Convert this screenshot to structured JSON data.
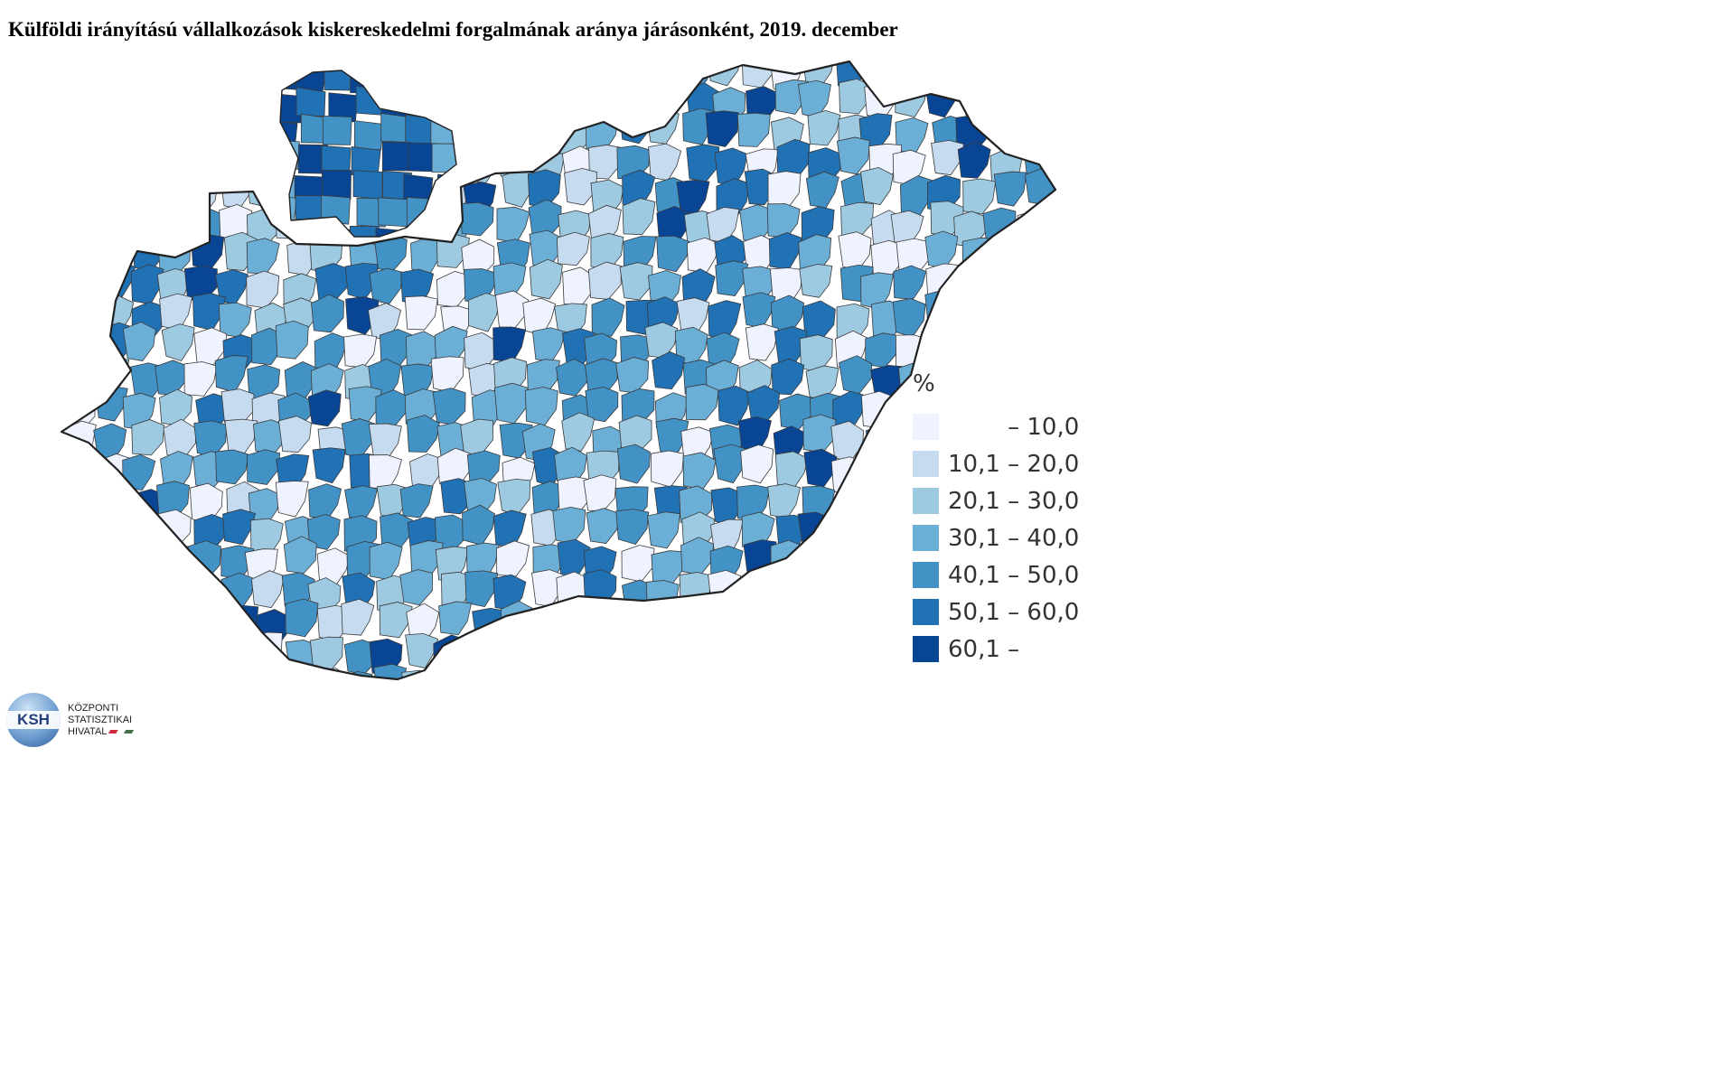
{
  "title": "Külföldi irányítású vállalkozások kiskereskedelmi forgalmának aránya járásonként, 2019. december",
  "legend": {
    "unit": "%",
    "classes": [
      {
        "label": "        – 10,0",
        "color": "#eff3ff"
      },
      {
        "label": "10,1 – 20,0",
        "color": "#c6dbef"
      },
      {
        "label": "20,1 – 30,0",
        "color": "#9ecae1"
      },
      {
        "label": "30,1 – 40,0",
        "color": "#6baed6"
      },
      {
        "label": "40,1 – 50,0",
        "color": "#4292c6"
      },
      {
        "label": "50,1 – 60,0",
        "color": "#2171b5"
      },
      {
        "label": "60,1 –",
        "color": "#084594"
      }
    ]
  },
  "logo": {
    "abbr": "KSH",
    "line1": "KÖZPONTI",
    "line2": "STATISZTIKAI",
    "line3": "HIVATAL"
  }
}
